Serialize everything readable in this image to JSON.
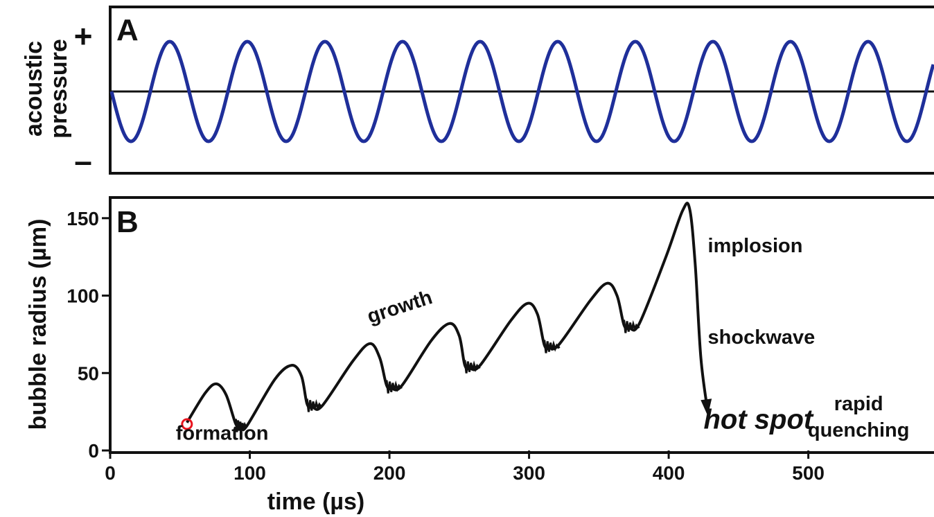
{
  "chart_data": [
    {
      "type": "line",
      "panel_label": "A",
      "ylabel": "acoustic\npressure",
      "ylabel_lines": [
        "acoustic",
        "pressure"
      ],
      "y_plus_label": "+",
      "y_minus_label": "–",
      "series": [
        {
          "type": "sine",
          "cycles_shown": 10.6,
          "amplitude": 1,
          "color": "#1f2f9a"
        }
      ],
      "zero_line": true,
      "grid": false
    },
    {
      "type": "line",
      "panel_label": "B",
      "xlabel": "time  (µs)",
      "ylabel": "bubble radius  (µm)",
      "xlim": [
        0,
        590
      ],
      "ylim": [
        0,
        162
      ],
      "xticks": [
        0,
        100,
        200,
        300,
        400,
        500
      ],
      "yticks": [
        0,
        50,
        100,
        150
      ],
      "xtick_labels": [
        "0",
        "100",
        "200",
        "300",
        "400",
        "500"
      ],
      "ytick_labels": [
        "0",
        "50",
        "100",
        "150"
      ],
      "grid": false,
      "series": [
        {
          "color": "#111111",
          "x": [
            55,
            68,
            76,
            83,
            90,
            94,
            98,
            118,
            130,
            137,
            141,
            145,
            152,
            174,
            186,
            193,
            198,
            202,
            209,
            230,
            243,
            250,
            254,
            258,
            265,
            287,
            299,
            306,
            311,
            315,
            322,
            344,
            356,
            363,
            368,
            372,
            379,
            398,
            410,
            415,
            419,
            423,
            428
          ],
          "y": [
            18,
            37,
            43,
            36,
            17,
            15,
            16,
            46,
            55,
            48,
            30,
            28,
            29,
            58,
            69,
            60,
            42,
            40,
            42,
            71,
            82,
            74,
            55,
            53,
            55,
            84,
            95,
            88,
            68,
            66,
            69,
            97,
            108,
            100,
            81,
            79,
            82,
            125,
            155,
            156,
            120,
            60,
            25
          ]
        }
      ],
      "annotations": [
        {
          "text": "formation",
          "x": 47,
          "y": 7
        },
        {
          "text": "growth",
          "x": 186,
          "y": 82,
          "rotate": -18
        },
        {
          "text": "implosion",
          "x": 428,
          "y": 128
        },
        {
          "text": "shockwave",
          "x": 428,
          "y": 69
        },
        {
          "text": "hot spot",
          "x": 425,
          "y": 14,
          "color": "#e8141e",
          "italic": true
        },
        {
          "text": "rapid",
          "x": 536,
          "y": 26
        },
        {
          "text": "quenching",
          "x": 536,
          "y": 9
        }
      ],
      "formation_marker": {
        "x": 55,
        "y": 17,
        "color": "#e8141e"
      }
    }
  ]
}
